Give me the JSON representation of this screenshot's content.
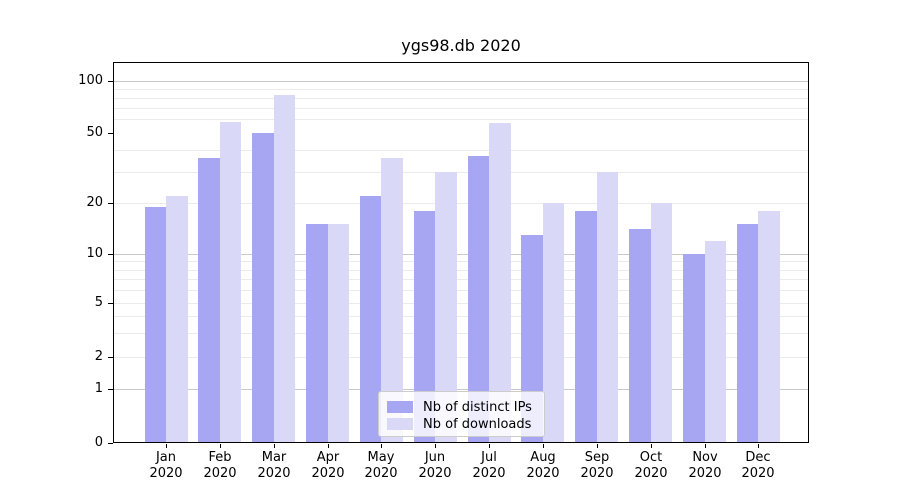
{
  "chart_data": {
    "type": "bar",
    "title": "ygs98.db 2020",
    "scale": "symlog",
    "grid": "on",
    "legend_position": "lower center",
    "background_color": "#ffffff",
    "categories": [
      "Jan",
      "Feb",
      "Mar",
      "Apr",
      "May",
      "Jun",
      "Jul",
      "Aug",
      "Sep",
      "Oct",
      "Nov",
      "Dec"
    ],
    "year": "2020",
    "series": [
      {
        "name": "Nb of distinct IPs",
        "color": "#a6a6f3",
        "values": [
          19,
          36,
          50,
          15,
          22,
          18,
          37,
          13,
          18,
          14,
          10,
          15
        ]
      },
      {
        "name": "Nb of downloads",
        "color": "#d9d9f7",
        "values": [
          22,
          58,
          83,
          15,
          36,
          30,
          57,
          20,
          30,
          20,
          12,
          18
        ]
      }
    ],
    "xlabel": "",
    "ylabel": "",
    "y_ticks": [
      100,
      50,
      20,
      10,
      5,
      2,
      1,
      0
    ],
    "y_tick_labels": [
      "100",
      "50",
      "20",
      "10",
      "5",
      "2",
      "1",
      "0"
    ],
    "ylim": [
      0,
      130
    ]
  }
}
